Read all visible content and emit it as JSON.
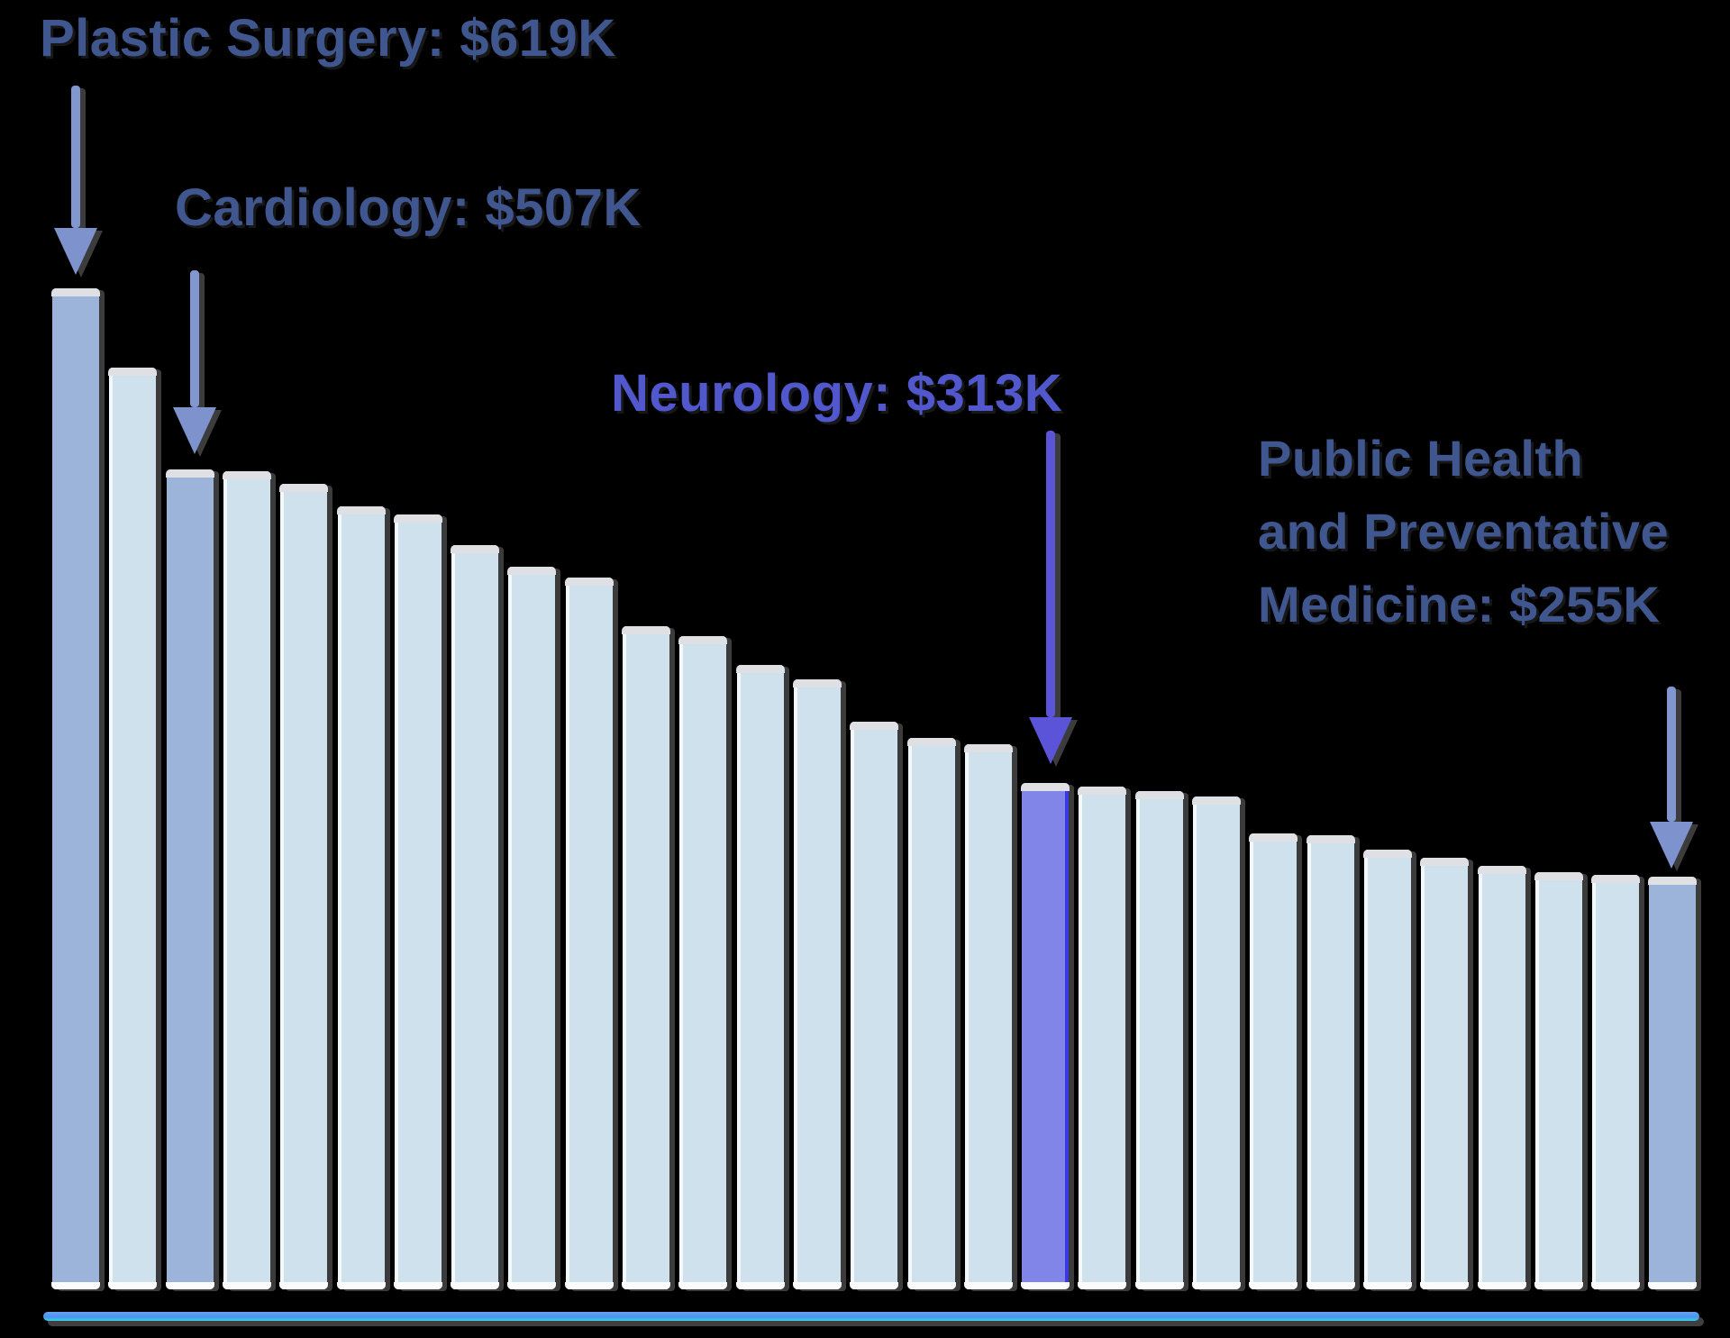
{
  "chart_data": {
    "type": "bar",
    "title": "",
    "unit": "USD thousands per year",
    "orientation": "vertical",
    "sorted": "descending",
    "axes_visible": false,
    "grid": false,
    "legend": false,
    "values": [
      619,
      570,
      507,
      506,
      498,
      484,
      479,
      460,
      447,
      440,
      410,
      404,
      386,
      377,
      351,
      341,
      337,
      313,
      311,
      308,
      305,
      282,
      281,
      272,
      267,
      262,
      258,
      256,
      255
    ],
    "styles": [
      "accent",
      "light",
      "accent",
      "light",
      "light",
      "light",
      "light",
      "light",
      "light",
      "light",
      "light",
      "light",
      "light",
      "light",
      "light",
      "light",
      "light",
      "highlight",
      "light",
      "light",
      "light",
      "light",
      "light",
      "light",
      "light",
      "light",
      "light",
      "light",
      "accent"
    ],
    "colors": {
      "light_bar": "#cfe1ec",
      "accent_bar": "#9cb4da",
      "highlight_bar": "#8285e8",
      "annotation_text_blue": "#40568f",
      "annotation_text_purple": "#5157cd",
      "arrow_blue": "#8297cf",
      "arrow_purple": "#5b54d8",
      "baseline_blue": "#4d92ee",
      "baseline_cyan": "#35d3e8"
    },
    "annotations": [
      {
        "label": "Plastic Surgery",
        "value": 619,
        "bar_index": 0,
        "text": "Plastic Surgery: $619K"
      },
      {
        "label": "Cardiology",
        "value": 507,
        "bar_index": 2,
        "text": "Cardiology: $507K"
      },
      {
        "label": "Neurology",
        "value": 313,
        "bar_index": 17,
        "text": "Neurology: $313K"
      },
      {
        "label": "Public Health and Preventative Medicine",
        "value": 255,
        "bar_index": 28,
        "lines": [
          "Public Health",
          "and Preventative",
          "Medicine: $255K"
        ]
      }
    ]
  }
}
